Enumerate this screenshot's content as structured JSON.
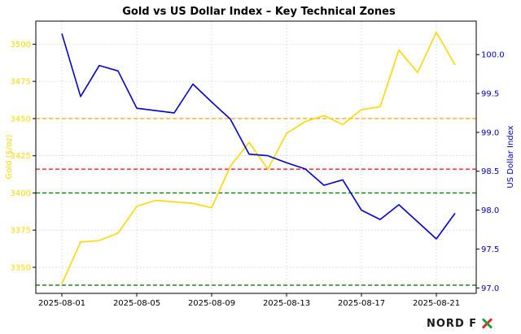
{
  "chart_data": {
    "type": "line",
    "title": "Gold vs US Dollar Index – Key Technical Zones",
    "x": [
      "2025-08-01",
      "2025-08-02",
      "2025-08-03",
      "2025-08-04",
      "2025-08-05",
      "2025-08-06",
      "2025-08-07",
      "2025-08-08",
      "2025-08-09",
      "2025-08-10",
      "2025-08-11",
      "2025-08-12",
      "2025-08-13",
      "2025-08-14",
      "2025-08-15",
      "2025-08-16",
      "2025-08-17",
      "2025-08-18",
      "2025-08-19",
      "2025-08-20",
      "2025-08-21",
      "2025-08-22"
    ],
    "x_ticks": [
      "2025-08-01",
      "2025-08-05",
      "2025-08-09",
      "2025-08-13",
      "2025-08-17",
      "2025-08-21"
    ],
    "series": [
      {
        "axis": "left",
        "color": "#FFD700",
        "values": [
          3339,
          3367,
          3368,
          3373,
          3391,
          3395,
          3394,
          3393,
          3390,
          3418,
          3434,
          3416,
          3440,
          3448,
          3452,
          3446,
          3456,
          3458,
          3496,
          3481,
          3508,
          3486
        ]
      },
      {
        "axis": "right",
        "color": "#0000CD",
        "values": [
          100.27,
          99.46,
          99.86,
          99.79,
          99.31,
          99.28,
          99.25,
          99.62,
          99.39,
          99.17,
          98.72,
          98.7,
          98.61,
          98.53,
          98.32,
          98.39,
          98.0,
          97.88,
          98.07,
          97.85,
          97.63,
          97.96
        ]
      }
    ],
    "ylabel_left": "Gold ($/oz)",
    "ylabel_right": "US Dollar Index",
    "left_axis_color": "#FFD700",
    "right_axis_color": "#0000CD",
    "ylim_left": [
      3332.5,
      3515.5
    ],
    "yticks_left": [
      3350,
      3375,
      3400,
      3425,
      3450,
      3475,
      3500
    ],
    "ylim_right": [
      96.93,
      100.43
    ],
    "yticks_right": [
      "97.0",
      "97.5",
      "98.0",
      "98.5",
      "99.0",
      "99.5",
      "100.0"
    ],
    "hlines": [
      {
        "y": 3450,
        "color": "#FFA500"
      },
      {
        "y": 3416,
        "color": "#FF0000"
      },
      {
        "y": 3400,
        "color": "#008000"
      },
      {
        "y": 3338,
        "color": "#008000"
      }
    ],
    "grid": true
  },
  "brand": {
    "logo_text": "NORD FX",
    "logo_left": "NORD F",
    "logo_colors": [
      "#e8262c",
      "#2b9a3d"
    ]
  }
}
